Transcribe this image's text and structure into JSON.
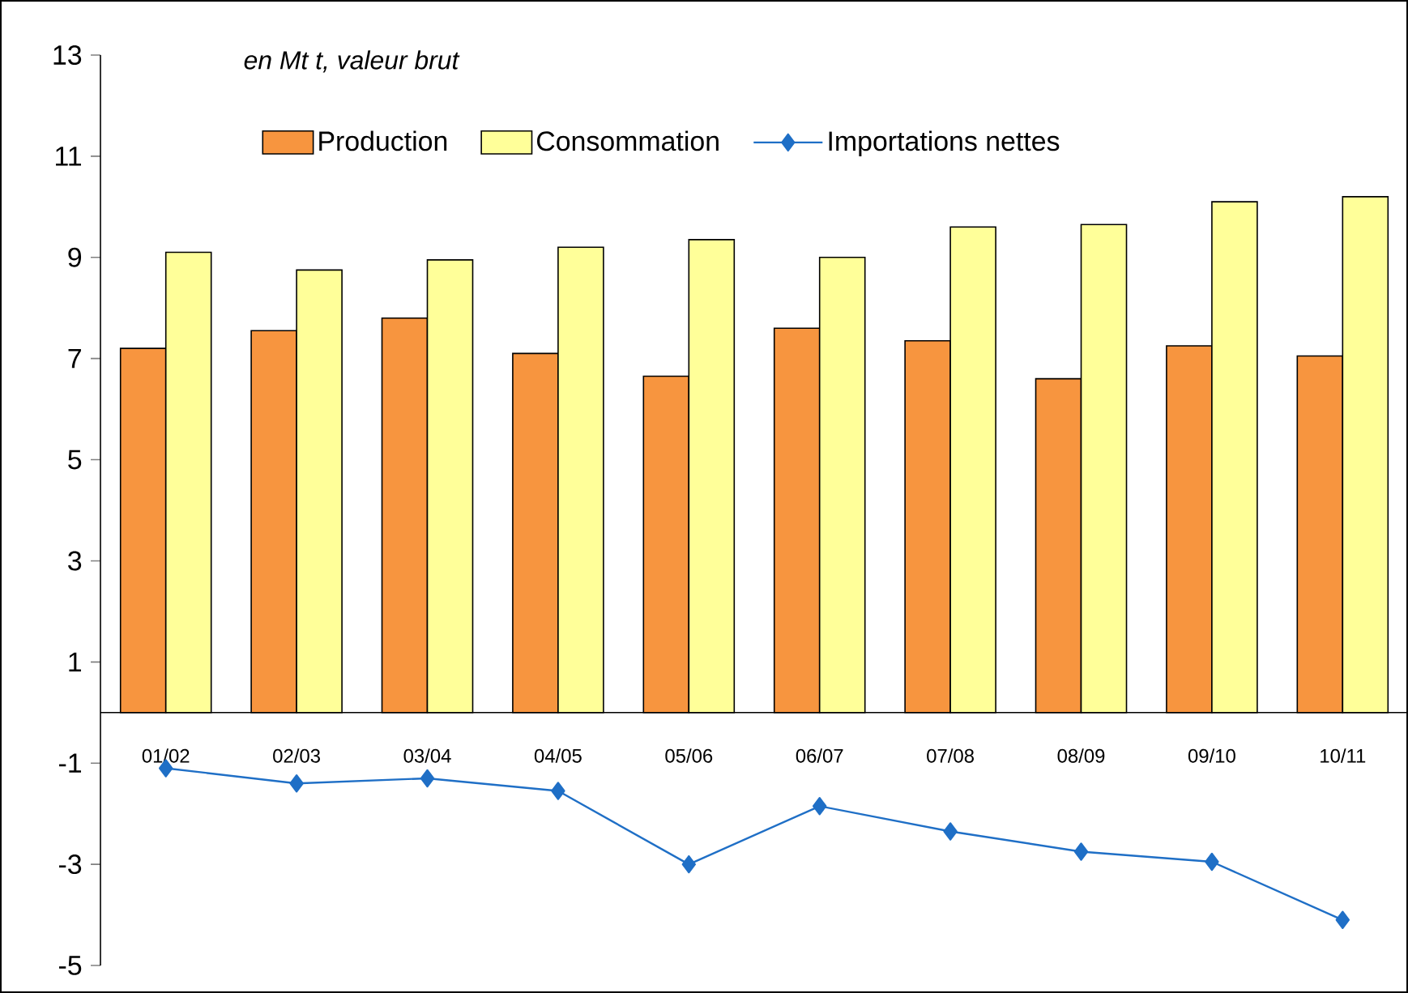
{
  "chart_data": {
    "type": "bar",
    "annotations": [
      "*en Mt t, valeur brut*"
    ],
    "categories": [
      "01/02",
      "02/03",
      "03/04",
      "04/05",
      "05/06",
      "06/07",
      "07/08",
      "08/09",
      "09/10",
      "10/11"
    ],
    "series": [
      {
        "name": "Production",
        "color": "#f7953f",
        "values": [
          7.2,
          7.55,
          7.8,
          7.1,
          6.65,
          7.6,
          7.35,
          6.6,
          7.25,
          7.05
        ]
      },
      {
        "name": "Consommation",
        "color": "#ffff99",
        "values": [
          9.1,
          8.75,
          8.95,
          9.2,
          9.35,
          9.0,
          9.6,
          9.65,
          10.1,
          10.2
        ]
      },
      {
        "name": "Importations nettes",
        "type": "line",
        "color": "#1f6fc6",
        "marker": "diamond",
        "line_style": "solid",
        "values": [
          -1.1,
          -1.4,
          -1.3,
          -1.55,
          -3.0,
          -1.85,
          -2.35,
          -2.75,
          -2.95,
          -4.1
        ]
      }
    ],
    "ylim": [
      -5,
      13
    ],
    "yticks": [
      -5,
      -3,
      -1,
      1,
      3,
      5,
      7,
      9,
      11,
      13
    ],
    "grid": false,
    "legend": "top"
  }
}
